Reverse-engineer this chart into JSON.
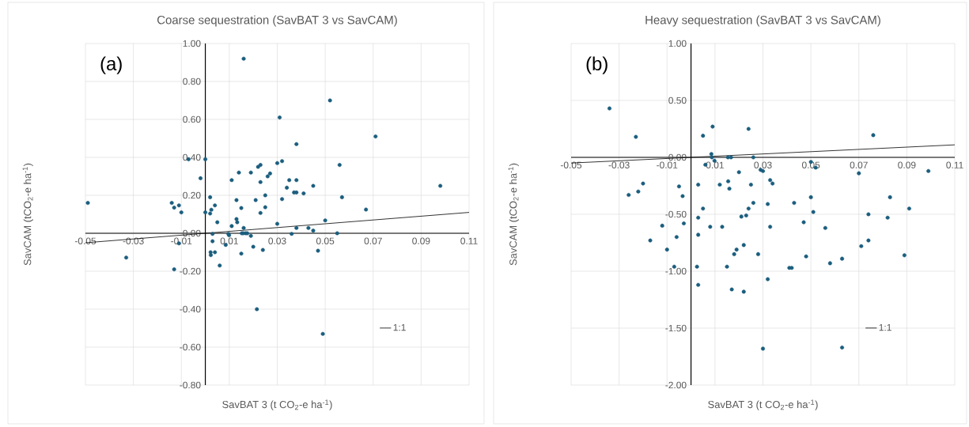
{
  "chart_data": [
    {
      "type": "scatter",
      "title": "Coarse sequestration (SavBAT 3 vs SavCAM)",
      "xlabel": "SavBAT 3 (t CO$_{2}$-e ha$^{-1}$)",
      "ylabel": "SavCAM (tCO$_{2}$-e ha$^{-1}$)",
      "annotations": [
        "(a)"
      ],
      "grid": true,
      "legend": "right",
      "marker": "circle",
      "xlim": [
        -0.05,
        0.11
      ],
      "ylim": [
        -0.8,
        1.0
      ],
      "xticks": [
        -0.05,
        -0.03,
        -0.01,
        0.01,
        0.03,
        0.05,
        0.07,
        0.09,
        0.11
      ],
      "yticks": [
        {
          "value": -0.8,
          "label": "-0.80"
        },
        {
          "value": -0.6,
          "label": "-0.60"
        },
        {
          "value": -0.4,
          "label": "-0.40"
        },
        {
          "value": -0.2,
          "label": "-0.20"
        },
        {
          "value": 0,
          "label": "0.00"
        },
        {
          "value": 0.2,
          "label": "0.20"
        },
        {
          "value": 0.4,
          "label": "0.40"
        },
        {
          "value": 0.6,
          "label": "0.60"
        },
        {
          "value": 0.8,
          "label": "0.80"
        },
        {
          "value": 1.0,
          "label": "1.00"
        }
      ],
      "series": [
        {
          "color": "#1b5e7e",
          "x": [
            -0.049,
            0.016,
            0.052,
            0.031,
            0.071,
            0.038,
            -0.007,
            0.0,
            0.056,
            0.032,
            0.03,
            0.023,
            0.022,
            0.027,
            0.026,
            0.019,
            0.014,
            -0.002,
            0.011,
            0.023,
            0.035,
            0.038,
            0.045,
            0.098,
            0.034,
            0.037,
            0.038,
            0.041,
            0.025,
            0.057,
            0.032,
            0.021,
            0.013,
            0.002,
            -0.014,
            -0.011,
            -0.013,
            -0.01,
            0.015,
            0.025,
            0.004,
            0.0025,
            0.0,
            0.002,
            0.023,
            0.067,
            0.013,
            0.005,
            0.0133,
            0.05,
            0.03,
            0.011,
            0.016,
            0.038,
            0.043,
            0.045,
            0.003,
            0.0096,
            0.0099,
            0.0152,
            0.0158,
            0.0168,
            0.0175,
            0.019,
            0.036,
            0.055,
            -0.011,
            0.003,
            0.0085,
            0.02,
            0.024,
            0.047,
            -0.033,
            0.0022,
            0.0023,
            0.004,
            0.015,
            -0.013,
            0.006,
            0.0215,
            0.049
          ],
          "values": [
            0.16,
            0.92,
            0.7,
            0.61,
            0.51,
            0.47,
            0.39,
            0.39,
            0.36,
            0.38,
            0.37,
            0.36,
            0.35,
            0.315,
            0.3,
            0.32,
            0.32,
            0.29,
            0.28,
            0.27,
            0.28,
            0.28,
            0.25,
            0.25,
            0.24,
            0.215,
            0.215,
            0.21,
            0.2,
            0.19,
            0.18,
            0.175,
            0.175,
            0.19,
            0.16,
            0.147,
            0.135,
            0.11,
            0.133,
            0.137,
            0.147,
            0.124,
            0.11,
            0.104,
            0.107,
            0.125,
            0.075,
            0.058,
            0.058,
            0.068,
            0.05,
            0.038,
            0.028,
            0.028,
            0.028,
            0.014,
            -0.003,
            -0.003,
            -0.01,
            0.0,
            0.0,
            0.0,
            0.0,
            -0.014,
            -0.003,
            0.0,
            -0.053,
            -0.042,
            -0.061,
            -0.071,
            -0.088,
            -0.092,
            -0.128,
            -0.1,
            -0.115,
            -0.1,
            -0.107,
            -0.19,
            -0.17,
            -0.4,
            -0.53
          ]
        },
        {
          "type": "line",
          "name": "1:1",
          "color": "#000000",
          "marker": "none",
          "x": [
            -0.05,
            0.11
          ],
          "values": [
            -0.05,
            0.11
          ]
        }
      ]
    },
    {
      "type": "scatter",
      "title": "Heavy sequestration (SavBAT 3 vs SavCAM)",
      "xlabel": "SavBAT 3 (t CO$_{2}$-e ha$^{-1}$)",
      "ylabel": "SavCAM (tCO$_{2}$-e ha$^{-1}$)",
      "annotations": [
        "(b)"
      ],
      "grid": true,
      "legend": "right",
      "marker": "circle",
      "xlim": [
        -0.05,
        0.11
      ],
      "ylim": [
        -2.0,
        1.0
      ],
      "xticks": [
        -0.05,
        -0.03,
        -0.01,
        0.01,
        0.03,
        0.05,
        0.07,
        0.09,
        0.11
      ],
      "yticks": [
        {
          "value": -2.0,
          "label": "-2.00"
        },
        {
          "value": -1.5,
          "label": "-1.50"
        },
        {
          "value": -1.0,
          "label": "-1.00"
        },
        {
          "value": -0.5,
          "label": "-0.50"
        },
        {
          "value": 0,
          "label": "0.00"
        },
        {
          "value": 0.5,
          "label": "0.50"
        },
        {
          "value": 1.0,
          "label": "1.00"
        }
      ],
      "series": [
        {
          "color": "#1b5e7e",
          "x": [
            -0.034,
            -0.023,
            0.009,
            0.005,
            0.024,
            0.076,
            0.0085,
            0.0087,
            0.0098,
            0.0154,
            0.0167,
            0.026,
            0.006,
            0.05,
            0.052,
            0.02,
            0.029,
            0.03,
            0.07,
            0.099,
            -0.02,
            -0.005,
            0.003,
            0.012,
            0.0155,
            0.016,
            0.025,
            0.033,
            0.034,
            -0.026,
            -0.022,
            -0.0035,
            0.083,
            0.05,
            0.026,
            0.032,
            0.043,
            0.005,
            0.024,
            0.051,
            0.091,
            0.074,
            0.003,
            0.021,
            0.023,
            0.082,
            -0.012,
            -0.003,
            0.008,
            0.013,
            0.033,
            0.047,
            0.056,
            0.003,
            -0.006,
            -0.017,
            0.074,
            0.071,
            0.022,
            -0.01,
            0.019,
            0.018,
            0.028,
            0.048,
            0.063,
            0.058,
            0.089,
            -0.007,
            0.0025,
            0.015,
            0.041,
            0.042,
            0.032,
            0.003,
            0.017,
            0.022,
            0.03,
            0.063
          ],
          "values": [
            0.43,
            0.18,
            0.27,
            0.19,
            0.25,
            0.195,
            0.03,
            0.0,
            -0.03,
            0.0,
            0.0,
            0.0,
            -0.065,
            -0.04,
            -0.09,
            -0.13,
            -0.11,
            -0.12,
            -0.14,
            -0.12,
            -0.23,
            -0.255,
            -0.24,
            -0.24,
            -0.21,
            -0.275,
            -0.24,
            -0.2,
            -0.23,
            -0.33,
            -0.3,
            -0.34,
            -0.35,
            -0.35,
            -0.4,
            -0.41,
            -0.4,
            -0.45,
            -0.45,
            -0.48,
            -0.45,
            -0.5,
            -0.53,
            -0.52,
            -0.51,
            -0.53,
            -0.6,
            -0.58,
            -0.61,
            -0.61,
            -0.61,
            -0.57,
            -0.62,
            -0.68,
            -0.7,
            -0.73,
            -0.73,
            -0.78,
            -0.77,
            -0.81,
            -0.81,
            -0.85,
            -0.85,
            -0.87,
            -0.89,
            -0.93,
            -0.86,
            -0.96,
            -0.96,
            -0.96,
            -0.97,
            -0.97,
            -1.07,
            -1.12,
            -1.16,
            -1.18,
            -1.68,
            -1.67
          ]
        },
        {
          "type": "line",
          "name": "1:1",
          "color": "#000000",
          "marker": "none",
          "x": [
            -0.05,
            0.11
          ],
          "values": [
            -0.05,
            0.11
          ]
        }
      ]
    }
  ]
}
